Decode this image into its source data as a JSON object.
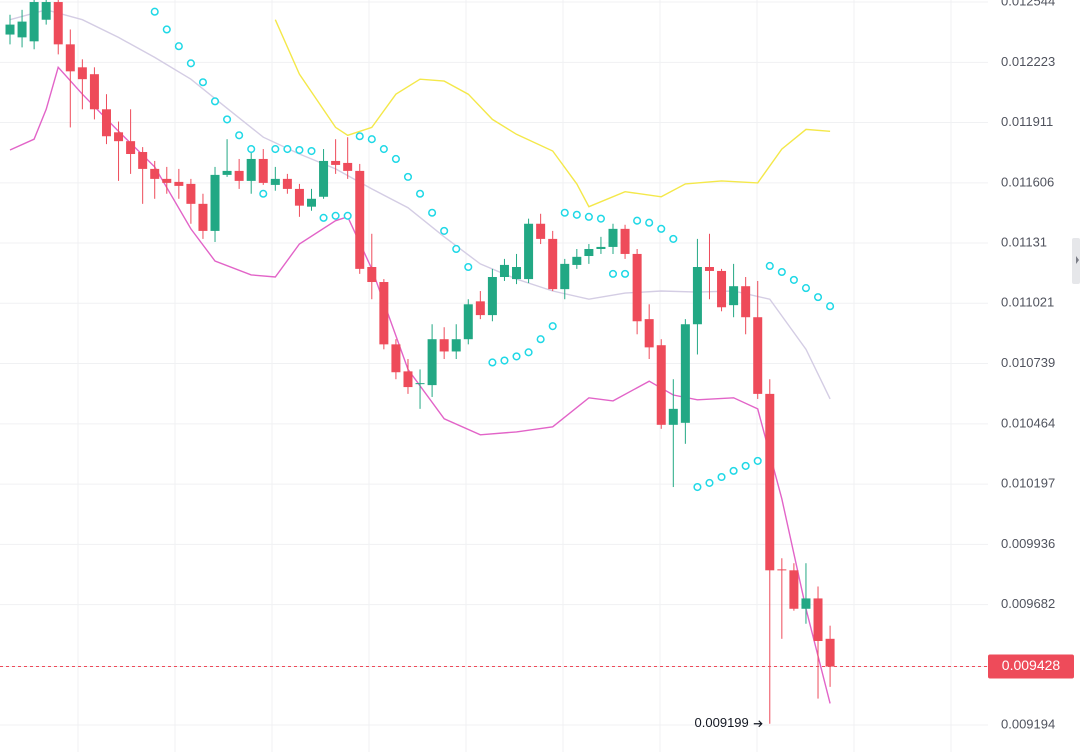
{
  "chart_data": {
    "type": "candlestick",
    "log_scale": true,
    "grid": true,
    "up_color": "#22a884",
    "down_color": "#ee4b5a",
    "ylim": [
      0.009088,
      0.012555
    ],
    "yticks": [
      0.009194,
      0.009428,
      0.009682,
      0.009936,
      0.010197,
      0.010464,
      0.010739,
      0.011021,
      0.01131,
      0.011606,
      0.011911,
      0.012223,
      0.012544
    ],
    "candles": {
      "open": [
        0.01237,
        0.012355,
        0.012334,
        0.012449,
        0.012544,
        0.012318,
        0.012197,
        0.012161,
        0.011979,
        0.011861,
        0.011816,
        0.011761,
        0.011676,
        0.011626,
        0.011611,
        0.011601,
        0.011502,
        0.011369,
        0.011646,
        0.011666,
        0.011616,
        0.011726,
        0.011596,
        0.011626,
        0.011576,
        0.011488,
        0.011537,
        0.011716,
        0.011706,
        0.011666,
        0.011194,
        0.011122,
        0.010828,
        0.010703,
        0.010645,
        0.01064,
        0.010852,
        0.010795,
        0.010852,
        0.01103,
        0.010965,
        0.011146,
        0.011136,
        0.011136,
        0.011404,
        0.01133,
        0.011088,
        0.011204,
        0.011247,
        0.011281,
        0.011291,
        0.011379,
        0.011257,
        0.010946,
        0.010824,
        0.01046,
        0.010469,
        0.010922,
        0.011194,
        0.011175,
        0.011012,
        0.011102,
        0.010955,
        0.0106,
        0.00983,
        0.009826,
        0.009665,
        0.009708,
        0.009541
      ],
      "high": [
        0.012476,
        0.012502,
        0.012555,
        0.012555,
        0.012555,
        0.012397,
        0.012239,
        0.012197,
        0.012057,
        0.011916,
        0.011979,
        0.011786,
        0.011716,
        0.011686,
        0.011676,
        0.011626,
        0.011552,
        0.011686,
        0.011826,
        0.011726,
        0.011786,
        0.011776,
        0.011686,
        0.011651,
        0.011601,
        0.011576,
        0.011776,
        0.011826,
        0.011836,
        0.011701,
        0.011355,
        0.011136,
        0.010852,
        0.01076,
        0.010712,
        0.010922,
        0.010908,
        0.010922,
        0.01104,
        0.011079,
        0.011185,
        0.011233,
        0.011257,
        0.011429,
        0.011453,
        0.011369,
        0.011233,
        0.011281,
        0.011305,
        0.01134,
        0.011404,
        0.011399,
        0.011281,
        0.011016,
        0.010852,
        0.010667,
        0.010946,
        0.01133,
        0.011355,
        0.011185,
        0.011209,
        0.011146,
        0.011127,
        0.010667,
        0.009877,
        0.009856,
        0.009856,
        0.009758,
        0.009595
      ],
      "low": [
        0.012318,
        0.012302,
        0.012292,
        0.012423,
        0.012265,
        0.011886,
        0.011979,
        0.011927,
        0.011801,
        0.011616,
        0.011651,
        0.011502,
        0.011527,
        0.011552,
        0.011527,
        0.011404,
        0.01133,
        0.011315,
        0.011636,
        0.011576,
        0.011552,
        0.011596,
        0.011567,
        0.011552,
        0.011438,
        0.011468,
        0.011527,
        0.011651,
        0.011626,
        0.011161,
        0.01104,
        0.010805,
        0.010667,
        0.0106,
        0.010532,
        0.010586,
        0.01076,
        0.01076,
        0.010828,
        0.010946,
        0.010936,
        0.011127,
        0.011112,
        0.011117,
        0.011305,
        0.011079,
        0.01104,
        0.011185,
        0.011209,
        0.011257,
        0.011257,
        0.011233,
        0.010875,
        0.01076,
        0.010442,
        0.010184,
        0.010375,
        0.010781,
        0.01104,
        0.010983,
        0.010955,
        0.010875,
        0.010577,
        0.009199,
        0.009541,
        0.009657,
        0.009603,
        0.009299,
        0.009346
      ],
      "close": [
        0.012423,
        0.012439,
        0.012544,
        0.012544,
        0.012318,
        0.012176,
        0.012135,
        0.011979,
        0.011841,
        0.011816,
        0.011751,
        0.011676,
        0.011626,
        0.011606,
        0.011591,
        0.011502,
        0.011369,
        0.011646,
        0.011666,
        0.011616,
        0.011726,
        0.011606,
        0.011626,
        0.011576,
        0.011493,
        0.011527,
        0.011716,
        0.011696,
        0.011666,
        0.011185,
        0.011122,
        0.010828,
        0.010699,
        0.010631,
        0.010649,
        0.010852,
        0.010795,
        0.010852,
        0.011016,
        0.010965,
        0.011146,
        0.011204,
        0.011194,
        0.011404,
        0.01133,
        0.011088,
        0.011209,
        0.011243,
        0.011281,
        0.011291,
        0.011379,
        0.011257,
        0.010936,
        0.010814,
        0.01046,
        0.010532,
        0.010922,
        0.011194,
        0.011175,
        0.011002,
        0.011102,
        0.010955,
        0.0106,
        0.009826,
        0.009826,
        0.009665,
        0.009708,
        0.009532,
        0.009428
      ]
    },
    "overlays": [
      {
        "type": "line",
        "color": "#d4cde4",
        "x": [
          0,
          3,
          6,
          9,
          12,
          15,
          18,
          21,
          24,
          27,
          30,
          33,
          36,
          39,
          42,
          45,
          48,
          51,
          54,
          57,
          60,
          63,
          66,
          68
        ],
        "values": [
          0.012449,
          0.012502,
          0.012449,
          0.012355,
          0.012249,
          0.012135,
          0.011984,
          0.011836,
          0.011751,
          0.011676,
          0.011576,
          0.011483,
          0.01134,
          0.011209,
          0.011136,
          0.011079,
          0.01104,
          0.011069,
          0.011079,
          0.011074,
          0.011079,
          0.01104,
          0.010805,
          0.010577
        ]
      },
      {
        "type": "line",
        "color": "#e264c8",
        "x": [
          0,
          2,
          3,
          4,
          6,
          9,
          12,
          15,
          17,
          20,
          22,
          24,
          27,
          28,
          30,
          33,
          36,
          39,
          42,
          45,
          48,
          50,
          53,
          55,
          57,
          60,
          62,
          64,
          66,
          68
        ],
        "values": [
          0.011771,
          0.011826,
          0.011979,
          0.012197,
          0.012057,
          0.011866,
          0.011686,
          0.011379,
          0.011223,
          0.011156,
          0.011146,
          0.011305,
          0.011419,
          0.011438,
          0.011185,
          0.010712,
          0.010487,
          0.010415,
          0.010428,
          0.010451,
          0.010582,
          0.010568,
          0.010658,
          0.010595,
          0.010573,
          0.010582,
          0.010532,
          0.010133,
          0.009665,
          0.00928
        ]
      },
      {
        "type": "line",
        "color": "#f4e84a",
        "x": [
          22,
          24,
          27,
          28,
          30,
          32,
          34,
          36,
          38,
          40,
          42,
          45,
          47,
          48,
          51,
          54,
          56,
          59,
          62,
          64,
          66,
          68
        ],
        "values": [
          0.012449,
          0.012161,
          0.011886,
          0.011846,
          0.011886,
          0.012057,
          0.012135,
          0.012125,
          0.012057,
          0.011927,
          0.011851,
          0.011766,
          0.011601,
          0.011488,
          0.011562,
          0.011537,
          0.011601,
          0.011616,
          0.011606,
          0.011776,
          0.011876,
          0.011866
        ]
      },
      {
        "type": "scatter",
        "color": "#1fd8e6",
        "x": [
          12,
          13,
          14,
          15,
          16,
          17,
          18,
          19,
          20,
          21,
          22,
          23,
          24,
          25,
          26,
          27,
          28,
          29,
          30,
          31,
          32,
          33,
          34,
          35,
          36,
          37,
          38,
          40,
          41,
          42,
          43,
          44,
          45,
          46,
          47,
          48,
          49,
          50,
          51,
          52,
          53,
          54,
          55,
          57,
          58,
          59,
          60,
          61,
          62,
          63,
          64,
          65,
          66,
          67,
          68
        ],
        "values": [
          0.012492,
          0.012397,
          0.012308,
          0.012218,
          0.012119,
          0.01202,
          0.011927,
          0.011846,
          0.011776,
          0.011552,
          0.011776,
          0.011776,
          0.011771,
          0.011766,
          0.011433,
          0.011443,
          0.011443,
          0.011841,
          0.011826,
          0.011776,
          0.011726,
          0.011636,
          0.011552,
          0.011458,
          0.011369,
          0.011281,
          0.011194,
          0.010744,
          0.010753,
          0.010772,
          0.010791,
          0.010852,
          0.010913,
          0.011458,
          0.011448,
          0.011438,
          0.011429,
          0.011161,
          0.011161,
          0.011419,
          0.011409,
          0.011379,
          0.01133,
          0.010184,
          0.010202,
          0.010228,
          0.010255,
          0.010277,
          0.010299,
          0.011199,
          0.01117,
          0.011132,
          0.011093,
          0.01105,
          0.011007
        ]
      }
    ]
  }
}
